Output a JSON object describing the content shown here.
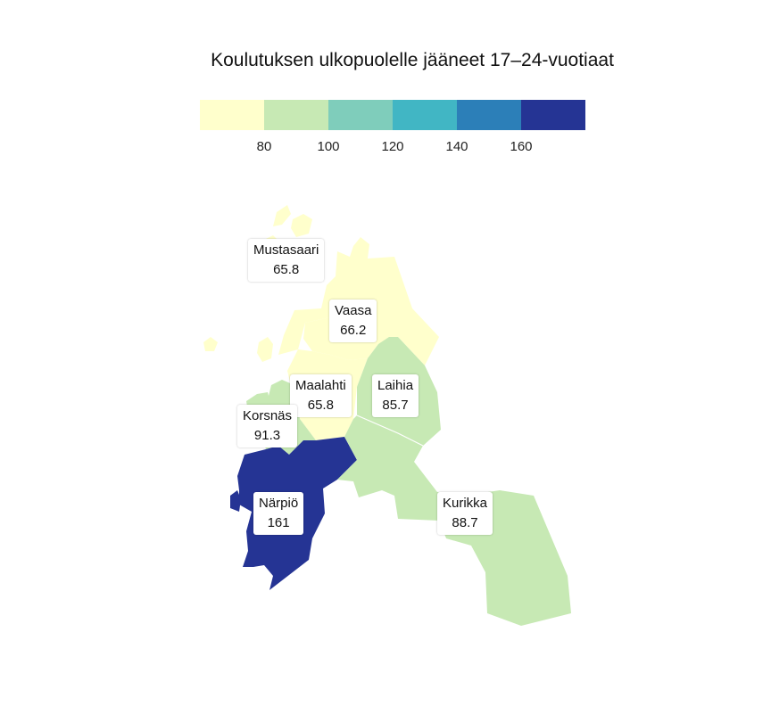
{
  "title": "Koulutuksen ulkopuolelle jääneet 17–24-vuotiaat",
  "legend": {
    "colors": [
      "#ffffcc",
      "#c7e9b4",
      "#7fcdbb",
      "#41b6c4",
      "#2c7fb8",
      "#253494"
    ],
    "ticks": [
      "80",
      "100",
      "120",
      "140",
      "160"
    ]
  },
  "municipalities": [
    {
      "name": "Mustasaari",
      "value": "65.8",
      "color": "#ffffcc"
    },
    {
      "name": "Vaasa",
      "value": "66.2",
      "color": "#ffffcc"
    },
    {
      "name": "Maalahti",
      "value": "65.8",
      "color": "#ffffcc"
    },
    {
      "name": "Laihia",
      "value": "85.7",
      "color": "#c7e9b4"
    },
    {
      "name": "Korsnäs",
      "value": "91.3",
      "color": "#c7e9b4"
    },
    {
      "name": "Närpiö",
      "value": "161",
      "color": "#253494"
    },
    {
      "name": "Kurikka",
      "value": "88.7",
      "color": "#c7e9b4"
    }
  ]
}
